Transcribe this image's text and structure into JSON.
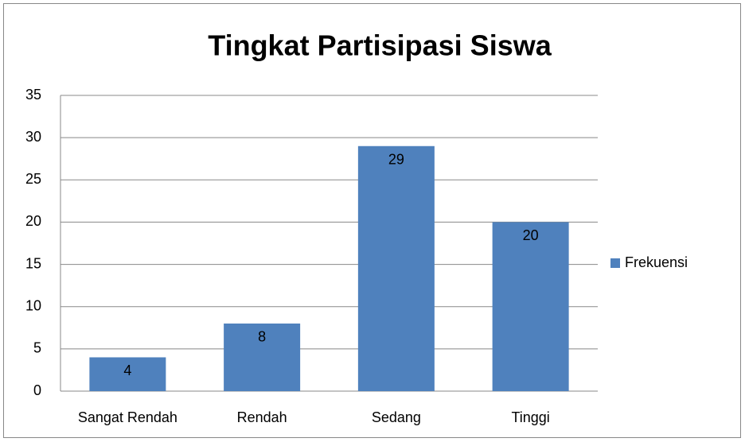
{
  "chart_data": {
    "type": "bar",
    "title": "Tingkat Partisipasi Siswa",
    "categories": [
      "Sangat Rendah",
      "Rendah",
      "Sedang",
      "Tinggi"
    ],
    "series": [
      {
        "name": "Frekuensi",
        "color": "#4f81bd",
        "values": [
          4,
          8,
          29,
          20
        ]
      }
    ],
    "ylim": [
      0,
      35
    ],
    "yticks": [
      0,
      5,
      10,
      15,
      20,
      25,
      30,
      35
    ],
    "grid": true,
    "legend": "right"
  }
}
